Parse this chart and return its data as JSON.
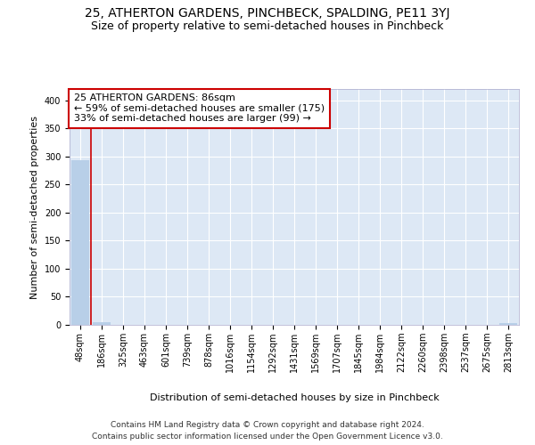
{
  "title": "25, ATHERTON GARDENS, PINCHBECK, SPALDING, PE11 3YJ",
  "subtitle": "Size of property relative to semi-detached houses in Pinchbeck",
  "xlabel": "Distribution of semi-detached houses by size in Pinchbeck",
  "ylabel": "Number of semi-detached properties",
  "categories": [
    "48sqm",
    "186sqm",
    "325sqm",
    "463sqm",
    "601sqm",
    "739sqm",
    "878sqm",
    "1016sqm",
    "1154sqm",
    "1292sqm",
    "1431sqm",
    "1569sqm",
    "1707sqm",
    "1845sqm",
    "1984sqm",
    "2122sqm",
    "2260sqm",
    "2398sqm",
    "2537sqm",
    "2675sqm",
    "2813sqm"
  ],
  "values": [
    293,
    5,
    0,
    0,
    0,
    0,
    0,
    0,
    0,
    0,
    0,
    0,
    0,
    0,
    0,
    0,
    0,
    0,
    0,
    0,
    3
  ],
  "bar_color": "#b8cfe8",
  "annotation_text": "25 ATHERTON GARDENS: 86sqm\n← 59% of semi-detached houses are smaller (175)\n33% of semi-detached houses are larger (99) →",
  "annotation_box_color": "#ffffff",
  "annotation_box_edge_color": "#cc0000",
  "property_line_color": "#cc0000",
  "property_bar_index": 1,
  "ylim": [
    0,
    420
  ],
  "yticks": [
    0,
    50,
    100,
    150,
    200,
    250,
    300,
    350,
    400
  ],
  "footer_line1": "Contains HM Land Registry data © Crown copyright and database right 2024.",
  "footer_line2": "Contains public sector information licensed under the Open Government Licence v3.0.",
  "bg_color": "#dde8f5",
  "grid_color": "#ffffff",
  "title_fontsize": 10,
  "subtitle_fontsize": 9,
  "axis_label_fontsize": 8,
  "tick_fontsize": 7,
  "annotation_fontsize": 8,
  "footer_fontsize": 6.5
}
